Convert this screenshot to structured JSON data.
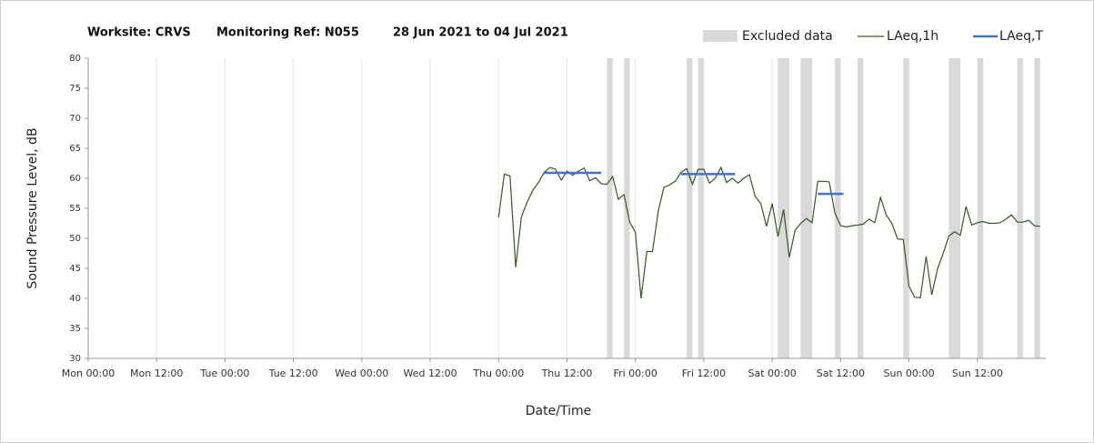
{
  "chart_data": {
    "type": "line",
    "title_parts": [
      "Worksite: CRVS",
      "Monitoring Ref: N055",
      "28 Jun 2021 to 04 Jul 2021"
    ],
    "x_label": "Date/Time",
    "y_label": "Sound Pressure Level, dB",
    "xlim": [
      0,
      168
    ],
    "xticks": [
      {
        "value": 0,
        "label": "Mon 00:00"
      },
      {
        "value": 12,
        "label": "Mon 12:00"
      },
      {
        "value": 24,
        "label": "Tue 00:00"
      },
      {
        "value": 36,
        "label": "Tue 12:00"
      },
      {
        "value": 48,
        "label": "Wed 00:00"
      },
      {
        "value": 60,
        "label": "Wed 12:00"
      },
      {
        "value": 72,
        "label": "Thu 00:00"
      },
      {
        "value": 84,
        "label": "Thu 12:00"
      },
      {
        "value": 96,
        "label": "Fri 00:00"
      },
      {
        "value": 108,
        "label": "Fri 12:00"
      },
      {
        "value": 120,
        "label": "Sat 00:00"
      },
      {
        "value": 132,
        "label": "Sat 12:00"
      },
      {
        "value": 144,
        "label": "Sun 00:00"
      },
      {
        "value": 156,
        "label": "Sun 12:00"
      }
    ],
    "ylim": [
      30,
      80
    ],
    "yticks": [
      30,
      35,
      40,
      45,
      50,
      55,
      60,
      65,
      70,
      75,
      80
    ],
    "grid": "x",
    "excluded": {
      "name": "Excluded data",
      "color": "#d9d9d9",
      "ranges": [
        [
          91,
          92
        ],
        [
          94,
          95
        ],
        [
          105,
          106
        ],
        [
          107,
          108
        ],
        [
          121,
          123
        ],
        [
          125,
          127
        ],
        [
          131,
          132
        ],
        [
          135,
          136
        ],
        [
          143,
          144
        ],
        [
          151,
          153
        ],
        [
          156,
          157
        ],
        [
          163,
          164
        ],
        [
          166,
          167
        ]
      ]
    },
    "series": [
      {
        "name": "LAeq,1h",
        "color": "#375623",
        "x": [
          72,
          73,
          74,
          75,
          76,
          77,
          78,
          79,
          80,
          81,
          82,
          83,
          84,
          85,
          86,
          87,
          88,
          89,
          90,
          91,
          92,
          93,
          94,
          95,
          96,
          97,
          98,
          99,
          100,
          101,
          102,
          103,
          104,
          105,
          106,
          107,
          108,
          109,
          110,
          111,
          112,
          113,
          114,
          115,
          116,
          117,
          118,
          119,
          120,
          121,
          122,
          123,
          124,
          125,
          126,
          127,
          128,
          129,
          130,
          131,
          132,
          133,
          134,
          135,
          136,
          137,
          138,
          139,
          140,
          141,
          142,
          143,
          144,
          145,
          146,
          147,
          148,
          149,
          150,
          151,
          152,
          153,
          154,
          155,
          156,
          157,
          158,
          159,
          160,
          161,
          162,
          163,
          164,
          165,
          166,
          167
        ],
        "values": [
          53.5,
          60.7,
          60.4,
          45.2,
          53.6,
          56,
          58,
          59.3,
          61,
          61.8,
          61.5,
          59.7,
          61.2,
          60.5,
          61.2,
          61.7,
          59.6,
          60.1,
          59.1,
          59,
          60.3,
          56.5,
          57.3,
          52.7,
          51,
          40,
          47.8,
          47.8,
          54.5,
          58.5,
          58.9,
          59.5,
          61,
          61.6,
          59,
          61.5,
          61.5,
          59.2,
          60,
          61.8,
          59.3,
          60,
          59.2,
          60,
          60.6,
          57,
          55.8,
          52,
          55.8,
          50.3,
          54.8,
          46.8,
          51.3,
          52.5,
          53.3,
          52.6,
          59.5,
          59.5,
          59.4,
          54.2,
          52.1,
          51.9,
          52.1,
          52.2,
          52.4,
          53.2,
          52.6,
          56.8,
          53.9,
          52.5,
          49.9,
          49.8,
          42,
          40.2,
          40.1,
          47,
          40.6,
          44.9,
          47.5,
          50.4,
          51.1,
          50.5,
          55.3,
          52.2,
          52.6,
          52.8,
          52.5,
          52.5,
          52.6,
          53.2,
          53.9,
          52.7,
          52.7,
          53,
          52.1,
          52
        ]
      }
    ],
    "levels": {
      "name": "LAeq,T",
      "color": "#4472c4",
      "segments": [
        {
          "x": [
            80,
            90
          ],
          "value": 60.9
        },
        {
          "x": [
            104,
            113.5
          ],
          "value": 60.7
        },
        {
          "x": [
            128,
            132.5
          ],
          "value": 57.4
        }
      ]
    }
  }
}
